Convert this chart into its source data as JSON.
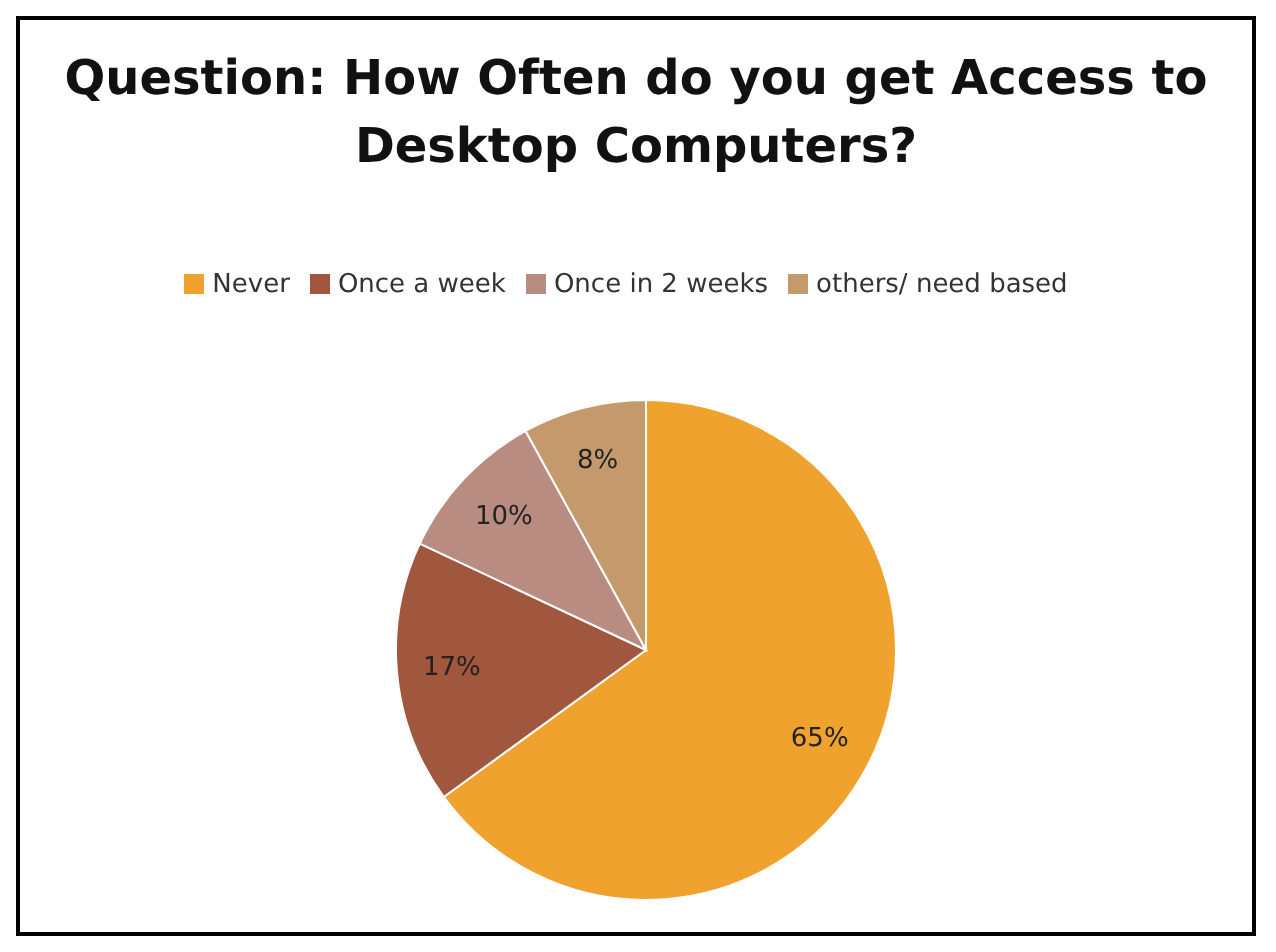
{
  "chart_data": {
    "type": "pie",
    "title": "Question: How Often do you get Access to Desktop Computers?",
    "categories": [
      "Never",
      "Once a week",
      "Once in 2 weeks",
      "others/ need based"
    ],
    "values": [
      65,
      17,
      10,
      8
    ],
    "colors": [
      "#f0a22e",
      "#a0573e",
      "#b88c80",
      "#c49a6c"
    ],
    "value_labels": [
      "65%",
      "17%",
      "10%",
      "8%"
    ],
    "legend": "top"
  }
}
